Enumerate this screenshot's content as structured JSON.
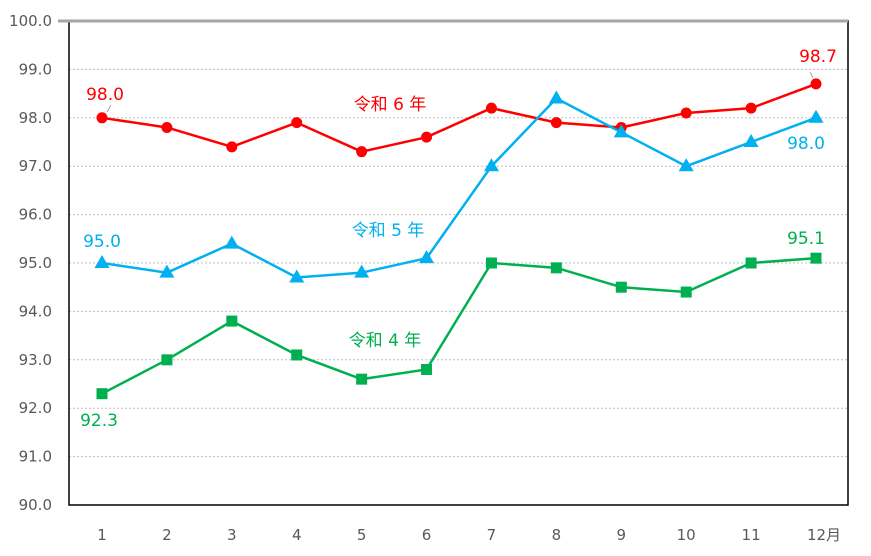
{
  "chart_data": {
    "type": "line",
    "title": "",
    "xlabel": "",
    "ylabel": "",
    "x_unit": "月",
    "categories": [
      "1",
      "2",
      "3",
      "4",
      "5",
      "6",
      "7",
      "8",
      "9",
      "10",
      "11",
      "12"
    ],
    "x_tick_labels": [
      "1",
      "2",
      "3",
      "4",
      "5",
      "6",
      "7",
      "8",
      "9",
      "10",
      "11",
      "12月"
    ],
    "ylim": [
      90.0,
      100.0
    ],
    "y_ticks": [
      "90.0",
      "91.0",
      "92.0",
      "93.0",
      "94.0",
      "95.0",
      "96.0",
      "97.0",
      "98.0",
      "99.0",
      "100.0"
    ],
    "grid": true,
    "legend_position": "inline labels",
    "series": [
      {
        "name": "令和６年",
        "label": "令和 6 年",
        "color": "#ff0000",
        "marker": "circle",
        "values": [
          98.0,
          97.8,
          97.4,
          97.9,
          97.3,
          97.6,
          98.2,
          97.9,
          97.8,
          98.1,
          98.2,
          98.7
        ],
        "data_labels": [
          {
            "index": 0,
            "text": "98.0"
          },
          {
            "index": 11,
            "text": "98.7"
          }
        ]
      },
      {
        "name": "令和５年",
        "label": "令和 5 年",
        "color": "#00b0f0",
        "marker": "triangle",
        "values": [
          95.0,
          94.8,
          95.4,
          94.7,
          94.8,
          95.1,
          97.0,
          98.4,
          97.7,
          97.0,
          97.5,
          98.0
        ],
        "data_labels": [
          {
            "index": 0,
            "text": "95.0"
          },
          {
            "index": 11,
            "text": "98.0"
          }
        ]
      },
      {
        "name": "令和４年",
        "label": "令和 4 年",
        "color": "#00b050",
        "marker": "square",
        "values": [
          92.3,
          93.0,
          93.8,
          93.1,
          92.6,
          92.8,
          95.0,
          94.9,
          94.5,
          94.4,
          95.0,
          95.1
        ],
        "data_labels": [
          {
            "index": 0,
            "text": "92.3"
          },
          {
            "index": 11,
            "text": "95.1"
          }
        ]
      }
    ]
  }
}
